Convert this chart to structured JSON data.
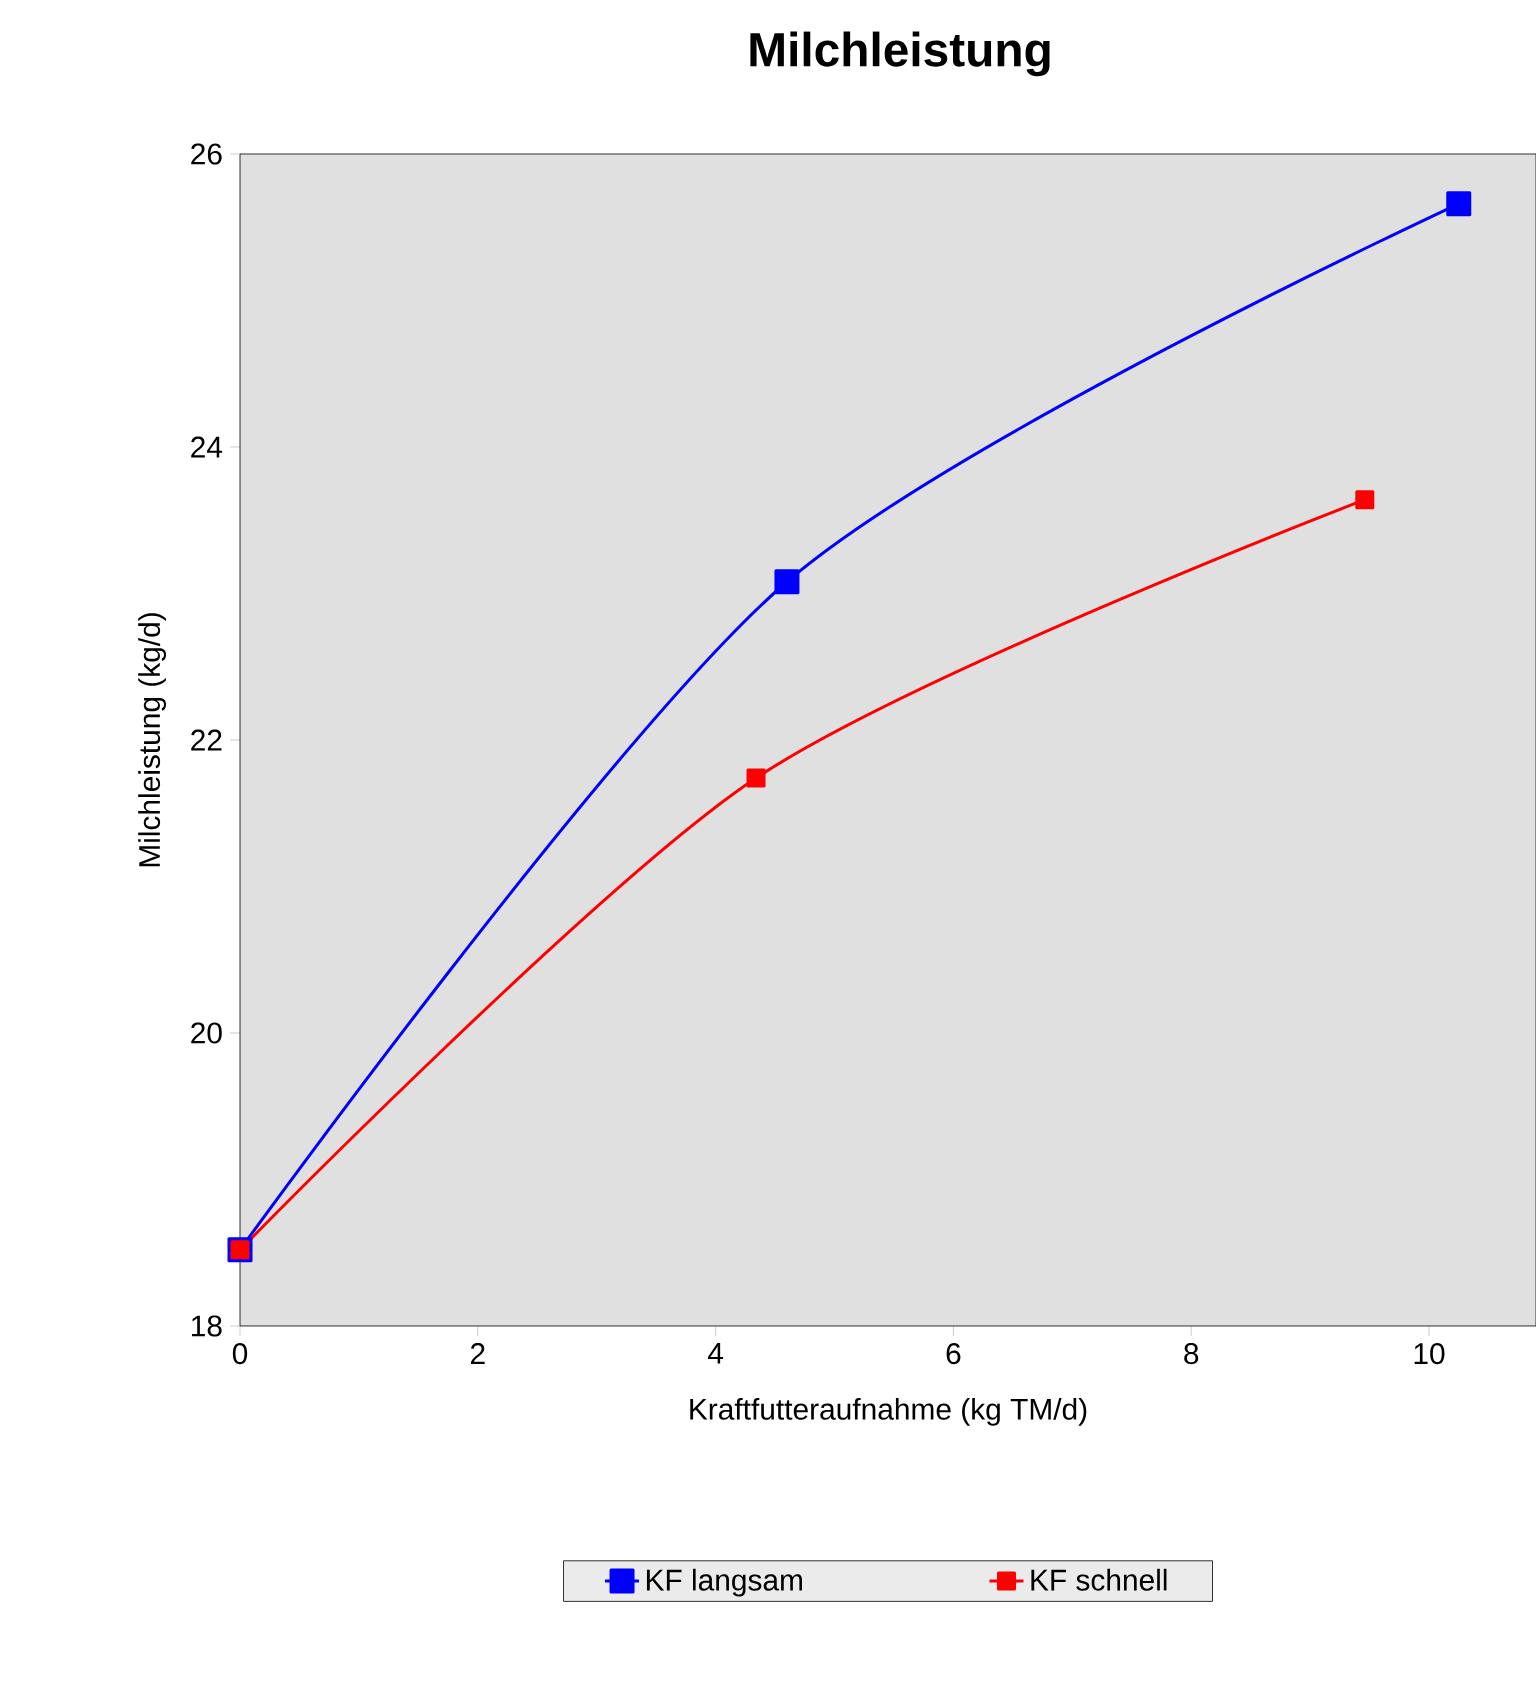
{
  "chart_data": {
    "type": "line",
    "title": "Milchleistung",
    "xlabel": "Kraftfutteraufnahme (kg TM/d)",
    "ylabel": "Milchleistung (kg/d)",
    "xlim": [
      0,
      10.9
    ],
    "ylim": [
      18,
      26
    ],
    "xticks": [
      0,
      2,
      4,
      6,
      8,
      10
    ],
    "yticks": [
      18,
      20,
      22,
      24,
      26
    ],
    "marker": "square",
    "legend": "bottom",
    "grid": false,
    "series": [
      {
        "name": "KF langsam",
        "color": "#0000ff",
        "x": [
          0,
          4.6,
          10.25
        ],
        "values": [
          18.52,
          23.08,
          25.66
        ]
      },
      {
        "name": "KF schnell",
        "color": "#ff0000",
        "x": [
          0,
          4.34,
          9.46
        ],
        "values": [
          18.52,
          21.74,
          23.64
        ]
      }
    ]
  }
}
